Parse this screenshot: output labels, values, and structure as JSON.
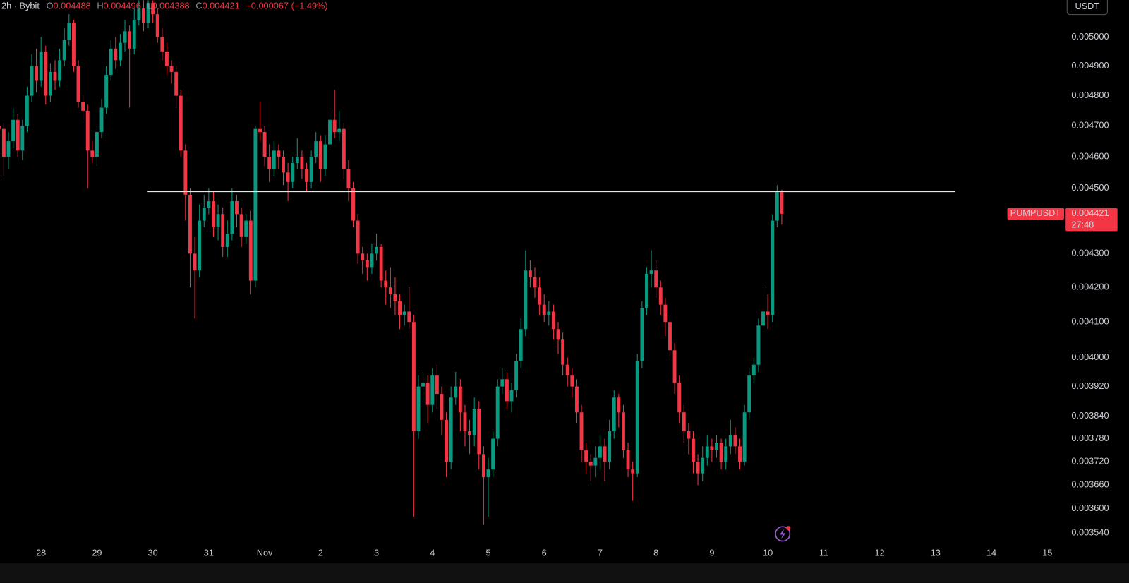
{
  "chart_data": {
    "type": "candlestick",
    "interval_label": "2h · Bybit",
    "ohlc_letters": [
      "O",
      "H",
      "L",
      "C"
    ],
    "change_label": "−0.000067 (−1.49%)",
    "currency": "USDT",
    "symbol": "PUMPUSDT",
    "countdown": "27:48",
    "up_color": "#089981",
    "down_color": "#f23645",
    "log": true,
    "grid": false,
    "ylim": [
      0.003513,
      0.00513
    ],
    "yticks": [
      {
        "value": 0.005,
        "label": "0.005000"
      },
      {
        "value": 0.0049,
        "label": "0.004900"
      },
      {
        "value": 0.0048,
        "label": "0.004800"
      },
      {
        "value": 0.0047,
        "label": "0.004700"
      },
      {
        "value": 0.0046,
        "label": "0.004600"
      },
      {
        "value": 0.0045,
        "label": "0.004500"
      },
      {
        "value": 0.0043,
        "label": "0.004300"
      },
      {
        "value": 0.0042,
        "label": "0.004200"
      },
      {
        "value": 0.0041,
        "label": "0.004100"
      },
      {
        "value": 0.004,
        "label": "0.004000"
      },
      {
        "value": 0.00392,
        "label": "0.003920"
      },
      {
        "value": 0.00384,
        "label": "0.003840"
      },
      {
        "value": 0.00378,
        "label": "0.003780"
      },
      {
        "value": 0.00372,
        "label": "0.003720"
      },
      {
        "value": 0.00366,
        "label": "0.003660"
      },
      {
        "value": 0.0036,
        "label": "0.003600"
      },
      {
        "value": 0.00354,
        "label": "0.003540"
      }
    ],
    "horizontal_line": 0.00449,
    "categories": [
      null,
      null,
      null,
      null,
      null,
      null,
      null,
      null,
      null,
      "28",
      null,
      null,
      null,
      null,
      null,
      null,
      null,
      null,
      null,
      null,
      null,
      "29",
      null,
      null,
      null,
      null,
      null,
      null,
      null,
      null,
      null,
      null,
      null,
      "30",
      null,
      null,
      null,
      null,
      null,
      null,
      null,
      null,
      null,
      null,
      null,
      "31",
      null,
      null,
      null,
      null,
      null,
      null,
      null,
      null,
      null,
      null,
      null,
      "Nov",
      null,
      null,
      null,
      null,
      null,
      null,
      null,
      null,
      null,
      null,
      null,
      "2",
      null,
      null,
      null,
      null,
      null,
      null,
      null,
      null,
      null,
      null,
      null,
      "3",
      null,
      null,
      null,
      null,
      null,
      null,
      null,
      null,
      null,
      null,
      null,
      "4",
      null,
      null,
      null,
      null,
      null,
      null,
      null,
      null,
      null,
      null,
      null,
      "5",
      null,
      null,
      null,
      null,
      null,
      null,
      null,
      null,
      null,
      null,
      null,
      "6",
      null,
      null,
      null,
      null,
      null,
      null,
      null,
      null,
      null,
      null,
      null,
      "7",
      null,
      null,
      null,
      null,
      null,
      null,
      null,
      null,
      null,
      null,
      null,
      "8",
      null,
      null,
      null,
      null,
      null,
      null,
      null,
      null,
      null,
      null,
      null,
      "9",
      null,
      null,
      null,
      null,
      null,
      null,
      null,
      null,
      null,
      null,
      null,
      "10",
      null,
      null,
      null,
      null,
      null,
      null,
      null,
      null,
      null,
      null,
      null,
      "11",
      null,
      null,
      null,
      null,
      null,
      null,
      null,
      null,
      null,
      null,
      null,
      "12",
      null,
      null,
      null,
      null,
      null,
      null,
      null,
      null,
      null,
      null,
      null,
      "13",
      null,
      null,
      null,
      null,
      null,
      null,
      null,
      null,
      null,
      null,
      null,
      "14",
      null,
      null,
      null,
      null,
      null,
      null,
      null,
      null,
      null,
      null,
      null,
      "15",
      null,
      null
    ],
    "open": [
      0.0047,
      0.00469,
      0.0046,
      0.00465,
      0.00472,
      0.00462,
      0.0047,
      0.0048,
      0.0049,
      0.00485,
      0.00495,
      0.0048,
      0.00488,
      0.00485,
      0.00492,
      0.00499,
      0.00505,
      0.0049,
      0.00478,
      0.00475,
      0.00462,
      0.0046,
      0.00468,
      0.00476,
      0.00487,
      0.00496,
      0.00492,
      0.00498,
      0.00502,
      0.00496,
      0.00506,
      0.0051,
      0.00505,
      0.00512,
      0.00508,
      0.005,
      0.00495,
      0.0049,
      0.00488,
      0.0048,
      0.00462,
      0.00448,
      0.0043,
      0.00425,
      0.0044,
      0.00444,
      0.00446,
      0.00438,
      0.00442,
      0.00432,
      0.00436,
      0.00446,
      0.00442,
      0.00435,
      0.0044,
      0.00422,
      0.00469,
      0.00468,
      0.0046,
      0.00456,
      0.00462,
      0.0046,
      0.00455,
      0.00452,
      0.00458,
      0.0046,
      0.00456,
      0.00452,
      0.0046,
      0.00465,
      0.00456,
      0.00464,
      0.00472,
      0.00468,
      0.00469,
      0.00456,
      0.0045,
      0.0044,
      0.0043,
      0.00428,
      0.00426,
      0.0043,
      0.00432,
      0.00422,
      0.0042,
      0.00418,
      0.00416,
      0.00412,
      0.00413,
      0.0041,
      0.0038,
      0.00392,
      0.00393,
      0.00387,
      0.00395,
      0.0039,
      0.00383,
      0.00372,
      0.00389,
      0.00392,
      0.00385,
      0.0038,
      0.00379,
      0.00386,
      0.00374,
      0.00368,
      0.0037,
      0.00378,
      0.00392,
      0.00394,
      0.00388,
      0.00391,
      0.00399,
      0.00408,
      0.00425,
      0.00423,
      0.0042,
      0.00415,
      0.00412,
      0.00413,
      0.00408,
      0.00405,
      0.00398,
      0.00395,
      0.00392,
      0.00385,
      0.00375,
      0.00372,
      0.00371,
      0.00373,
      0.00376,
      0.00372,
      0.0038,
      0.00389,
      0.00385,
      0.00375,
      0.0037,
      0.00369,
      0.00399,
      0.00414,
      0.00424,
      0.00425,
      0.0042,
      0.00415,
      0.0041,
      0.00402,
      0.00393,
      0.00385,
      0.0038,
      0.00378,
      0.00372,
      0.00369,
      0.00373,
      0.00376,
      0.00375,
      0.00377,
      0.00372,
      0.00376,
      0.00379,
      0.00376,
      0.00372,
      0.00385,
      0.00395,
      0.00398,
      0.00409,
      0.00413,
      0.00412,
      0.0044,
      0.004488,
      null,
      null,
      null,
      null,
      null,
      null,
      null,
      null,
      null,
      null,
      null,
      null,
      null,
      null,
      null,
      null,
      null,
      null,
      null,
      null,
      null,
      null,
      null,
      null,
      null,
      null,
      null,
      null,
      null,
      null,
      null,
      null,
      null,
      null,
      null,
      null,
      null,
      null,
      null,
      null,
      null,
      null,
      null,
      null,
      null,
      null,
      null,
      null,
      null,
      null,
      null,
      null,
      null,
      null,
      null,
      null,
      null,
      null,
      null
    ],
    "high": [
      0.00476,
      0.00471,
      0.00468,
      0.00476,
      0.00474,
      0.00472,
      0.00483,
      0.00494,
      0.00496,
      0.005,
      0.00497,
      0.00491,
      0.00492,
      0.00496,
      0.00503,
      0.00508,
      0.00506,
      0.00492,
      0.0048,
      0.00477,
      0.00465,
      0.0047,
      0.00479,
      0.0049,
      0.00499,
      0.005,
      0.00501,
      0.00506,
      0.00504,
      0.0051,
      0.00513,
      0.00513,
      0.00513,
      0.00513,
      0.0051,
      0.00503,
      0.00498,
      0.00492,
      0.0049,
      0.00482,
      0.00464,
      0.0045,
      0.00435,
      0.00445,
      0.00448,
      0.0045,
      0.00449,
      0.00445,
      0.00444,
      0.0044,
      0.0045,
      0.00448,
      0.00444,
      0.00442,
      0.00443,
      0.0047,
      0.00478,
      0.0047,
      0.00464,
      0.00465,
      0.00464,
      0.00462,
      0.00458,
      0.0046,
      0.00466,
      0.00462,
      0.00458,
      0.00462,
      0.00468,
      0.00467,
      0.00467,
      0.00476,
      0.00482,
      0.00475,
      0.00471,
      0.00459,
      0.00452,
      0.00442,
      0.00432,
      0.0043,
      0.00433,
      0.00436,
      0.00433,
      0.00425,
      0.00426,
      0.00423,
      0.00418,
      0.00415,
      0.0042,
      0.00412,
      0.00395,
      0.00396,
      0.00395,
      0.00397,
      0.00398,
      0.00392,
      0.00385,
      0.00392,
      0.00396,
      0.00394,
      0.00387,
      0.00383,
      0.00389,
      0.00388,
      0.00376,
      0.00373,
      0.0038,
      0.00394,
      0.00397,
      0.00396,
      0.00393,
      0.00401,
      0.00411,
      0.00431,
      0.00428,
      0.00426,
      0.00423,
      0.00418,
      0.00416,
      0.00415,
      0.0041,
      0.00407,
      0.004,
      0.00397,
      0.00394,
      0.00387,
      0.00377,
      0.00374,
      0.00376,
      0.00379,
      0.00378,
      0.00383,
      0.00391,
      0.0039,
      0.00387,
      0.00377,
      0.00372,
      0.00401,
      0.00416,
      0.00426,
      0.00431,
      0.00428,
      0.00422,
      0.00417,
      0.00412,
      0.00404,
      0.00395,
      0.00387,
      0.00382,
      0.0038,
      0.00374,
      0.00376,
      0.00379,
      0.00378,
      0.00379,
      0.00378,
      0.00378,
      0.00383,
      0.00381,
      0.00378,
      0.00387,
      0.00397,
      0.004,
      0.00411,
      0.0042,
      0.00418,
      0.00442,
      0.00451,
      0.004496,
      null,
      null,
      null,
      null,
      null,
      null,
      null,
      null,
      null,
      null,
      null,
      null,
      null,
      null,
      null,
      null,
      null,
      null,
      null,
      null,
      null,
      null,
      null,
      null,
      null,
      null,
      null,
      null,
      null,
      null,
      null,
      null,
      null,
      null,
      null,
      null,
      null,
      null,
      null,
      null,
      null,
      null,
      null,
      null,
      null,
      null,
      null,
      null,
      null,
      null,
      null,
      null,
      null,
      null,
      null,
      null,
      null,
      null,
      null
    ],
    "low": [
      0.00462,
      0.00454,
      0.00456,
      0.00463,
      0.0046,
      0.00459,
      0.00468,
      0.00478,
      0.00481,
      0.00483,
      0.00477,
      0.00478,
      0.00482,
      0.00483,
      0.0049,
      0.00497,
      0.00488,
      0.00476,
      0.00472,
      0.0045,
      0.00458,
      0.00457,
      0.00466,
      0.00474,
      0.00485,
      0.00489,
      0.0049,
      0.00495,
      0.00476,
      0.00494,
      0.00504,
      0.00502,
      0.00503,
      0.00505,
      0.00498,
      0.00492,
      0.00487,
      0.00484,
      0.00476,
      0.0046,
      0.0044,
      0.0042,
      0.00411,
      0.00423,
      0.00438,
      0.00442,
      0.00435,
      0.00434,
      0.00429,
      0.00429,
      0.00434,
      0.00438,
      0.00432,
      0.00433,
      0.00418,
      0.0042,
      0.00465,
      0.00457,
      0.00452,
      0.00454,
      0.00456,
      0.00451,
      0.00446,
      0.0045,
      0.00456,
      0.00453,
      0.00449,
      0.0045,
      0.00458,
      0.00452,
      0.00454,
      0.00462,
      0.00466,
      0.00465,
      0.00453,
      0.00446,
      0.00438,
      0.00427,
      0.00424,
      0.00422,
      0.00424,
      0.00428,
      0.0042,
      0.00415,
      0.00414,
      0.00412,
      0.00408,
      0.00409,
      0.00408,
      0.00358,
      0.00378,
      0.00388,
      0.00382,
      0.00385,
      0.00386,
      0.00379,
      0.00368,
      0.0037,
      0.00387,
      0.0038,
      0.00376,
      0.00374,
      0.00376,
      0.0037,
      0.00356,
      0.00358,
      0.00368,
      0.00376,
      0.0039,
      0.00386,
      0.00385,
      0.00389,
      0.00397,
      0.00406,
      0.0042,
      0.00417,
      0.00412,
      0.0041,
      0.00409,
      0.00405,
      0.00401,
      0.00395,
      0.00392,
      0.00389,
      0.00382,
      0.00372,
      0.00369,
      0.00367,
      0.00368,
      0.0037,
      0.00367,
      0.0037,
      0.00378,
      0.00381,
      0.00373,
      0.00368,
      0.00362,
      0.00368,
      0.00397,
      0.00412,
      0.0042,
      0.00417,
      0.00412,
      0.00406,
      0.00399,
      0.0039,
      0.00382,
      0.00377,
      0.00374,
      0.00369,
      0.00366,
      0.00367,
      0.00371,
      0.00372,
      0.00373,
      0.0037,
      0.0037,
      0.00374,
      0.00374,
      0.0037,
      0.00371,
      0.00383,
      0.00393,
      0.00396,
      0.00407,
      0.00408,
      0.0041,
      0.00438,
      0.004388,
      null,
      null,
      null,
      null,
      null,
      null,
      null,
      null,
      null,
      null,
      null,
      null,
      null,
      null,
      null,
      null,
      null,
      null,
      null,
      null,
      null,
      null,
      null,
      null,
      null,
      null,
      null,
      null,
      null,
      null,
      null,
      null,
      null,
      null,
      null,
      null,
      null,
      null,
      null,
      null,
      null,
      null,
      null,
      null,
      null,
      null,
      null,
      null,
      null,
      null,
      null,
      null,
      null,
      null,
      null,
      null,
      null,
      null,
      null
    ],
    "close": [
      0.00469,
      0.0046,
      0.00465,
      0.00472,
      0.00462,
      0.0047,
      0.0048,
      0.0049,
      0.00485,
      0.00495,
      0.0048,
      0.00488,
      0.00485,
      0.00492,
      0.00499,
      0.00505,
      0.0049,
      0.00478,
      0.00475,
      0.00462,
      0.0046,
      0.00468,
      0.00476,
      0.00487,
      0.00496,
      0.00492,
      0.00498,
      0.00502,
      0.00496,
      0.00506,
      0.0051,
      0.00505,
      0.00512,
      0.00508,
      0.005,
      0.00495,
      0.0049,
      0.00488,
      0.0048,
      0.00462,
      0.00448,
      0.0043,
      0.00425,
      0.0044,
      0.00444,
      0.00446,
      0.00438,
      0.00442,
      0.00432,
      0.00436,
      0.00446,
      0.00442,
      0.00435,
      0.0044,
      0.00422,
      0.00469,
      0.00468,
      0.0046,
      0.00456,
      0.00462,
      0.0046,
      0.00455,
      0.00452,
      0.00458,
      0.0046,
      0.00456,
      0.00452,
      0.0046,
      0.00465,
      0.00456,
      0.00464,
      0.00472,
      0.00468,
      0.00469,
      0.00456,
      0.0045,
      0.0044,
      0.0043,
      0.00428,
      0.00426,
      0.0043,
      0.00432,
      0.00422,
      0.0042,
      0.00418,
      0.00416,
      0.00412,
      0.00413,
      0.0041,
      0.0038,
      0.00392,
      0.00393,
      0.00387,
      0.00395,
      0.0039,
      0.00383,
      0.00372,
      0.00389,
      0.00392,
      0.00385,
      0.0038,
      0.00379,
      0.00386,
      0.00374,
      0.00368,
      0.0037,
      0.00378,
      0.00392,
      0.00394,
      0.00388,
      0.00391,
      0.00399,
      0.00408,
      0.00425,
      0.00423,
      0.0042,
      0.00415,
      0.00412,
      0.00413,
      0.00408,
      0.00405,
      0.00398,
      0.00395,
      0.00392,
      0.00385,
      0.00375,
      0.00372,
      0.00371,
      0.00373,
      0.00376,
      0.00372,
      0.0038,
      0.00389,
      0.00385,
      0.00375,
      0.0037,
      0.00369,
      0.00399,
      0.00414,
      0.00424,
      0.00425,
      0.0042,
      0.00415,
      0.0041,
      0.00402,
      0.00393,
      0.00385,
      0.0038,
      0.00378,
      0.00372,
      0.00369,
      0.00373,
      0.00376,
      0.00375,
      0.00377,
      0.00372,
      0.00376,
      0.00379,
      0.00376,
      0.00372,
      0.00385,
      0.00395,
      0.00398,
      0.00409,
      0.00413,
      0.00412,
      0.0044,
      0.004488,
      0.004421,
      null,
      null,
      null,
      null,
      null,
      null,
      null,
      null,
      null,
      null,
      null,
      null,
      null,
      null,
      null,
      null,
      null,
      null,
      null,
      null,
      null,
      null,
      null,
      null,
      null,
      null,
      null,
      null,
      null,
      null,
      null,
      null,
      null,
      null,
      null,
      null,
      null,
      null,
      null,
      null,
      null,
      null,
      null,
      null,
      null,
      null,
      null,
      null,
      null,
      null,
      null,
      null,
      null,
      null,
      null,
      null,
      null,
      null,
      null
    ]
  }
}
